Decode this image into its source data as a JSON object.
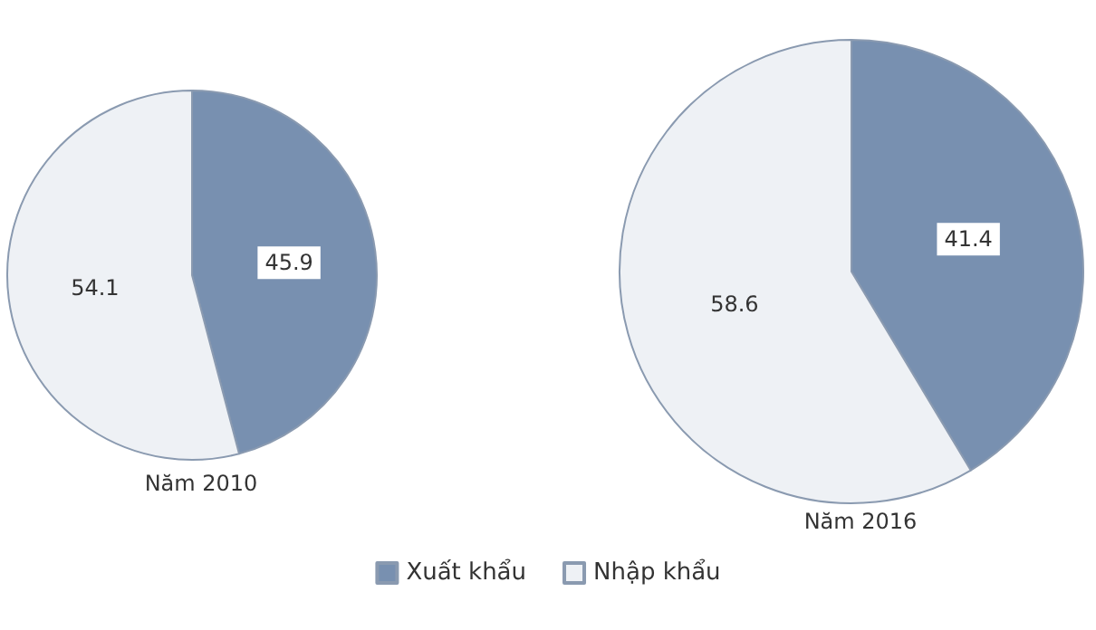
{
  "chart_data": [
    {
      "type": "pie",
      "title": "Năm 2010",
      "categories": [
        "Xuất khẩu",
        "Nhập khẩu"
      ],
      "values": [
        45.9,
        54.1
      ],
      "colors": [
        "#7890b0",
        "#eef1f5"
      ],
      "data_labels": true,
      "legend": "bottom"
    },
    {
      "type": "pie",
      "title": "Năm 2016",
      "categories": [
        null,
        null
      ],
      "values": [
        41.4,
        58.6
      ],
      "colors": [
        "#7890b0",
        "#eef1f5"
      ],
      "data_labels": true
    }
  ]
}
